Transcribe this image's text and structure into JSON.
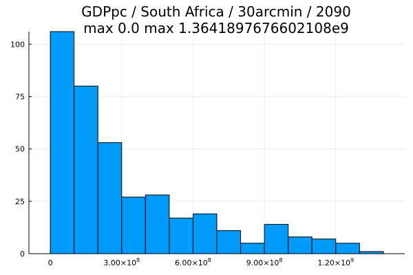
{
  "chart_data": {
    "type": "bar",
    "title": [
      "GDPpc / South Africa / 30arcmin / 2090",
      "max 0.0  max 1.3641897676602108e9"
    ],
    "xlabel": "",
    "ylabel": "",
    "bin_edges": [
      0,
      100000000,
      200000000,
      300000000,
      400000000,
      500000000,
      600000000,
      700000000,
      800000000,
      900000000,
      1000000000,
      1100000000,
      1200000000,
      1300000000,
      1400000000
    ],
    "values": [
      106,
      80,
      53,
      27,
      28,
      17,
      19,
      11,
      5,
      14,
      8,
      7,
      5,
      1
    ],
    "xlim": [
      -90000000,
      1490000000
    ],
    "ylim": [
      0,
      106
    ],
    "x_ticks": [
      {
        "value": 0,
        "base": "0",
        "exp": ""
      },
      {
        "value": 300000000,
        "base": "3.00×10",
        "exp": "8"
      },
      {
        "value": 600000000,
        "base": "6.00×10",
        "exp": "8"
      },
      {
        "value": 900000000,
        "base": "9.00×10",
        "exp": "8"
      },
      {
        "value": 1200000000,
        "base": "1.20×10",
        "exp": "9"
      }
    ],
    "y_ticks": [
      {
        "value": 0,
        "label": "0"
      },
      {
        "value": 25,
        "label": "25"
      },
      {
        "value": 50,
        "label": "50"
      },
      {
        "value": 75,
        "label": "75"
      },
      {
        "value": 100,
        "label": "100"
      }
    ],
    "grid": true,
    "legend": "none",
    "colors": {
      "bar_fill": "#009AF9",
      "bar_stroke": "#000000"
    }
  }
}
